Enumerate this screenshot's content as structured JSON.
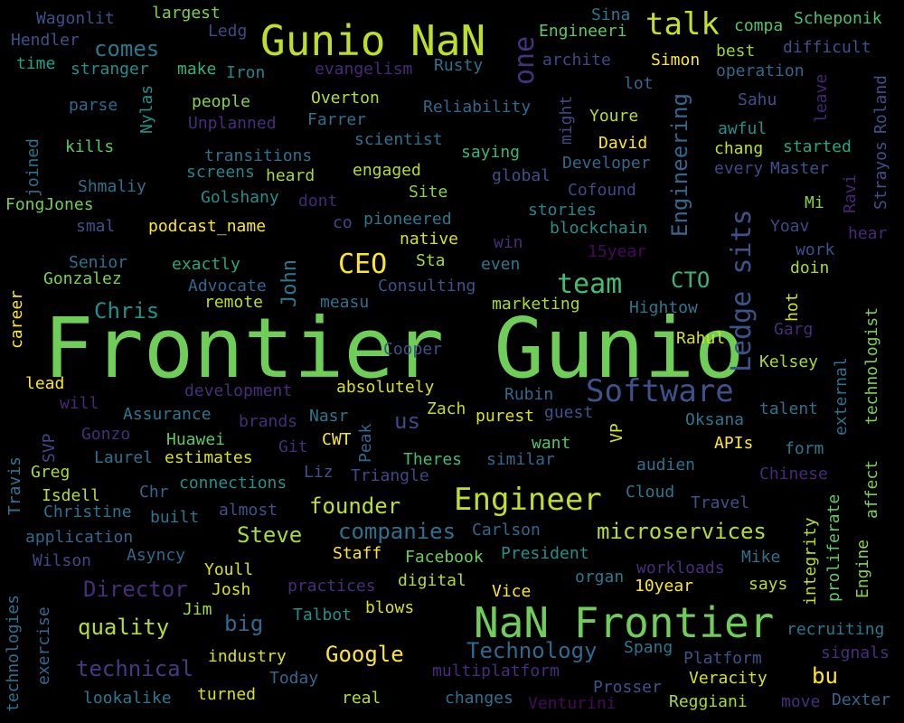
{
  "words": [
    {
      "text": "Frontier Gunio",
      "color": "#6ece58"
    },
    {
      "text": "NaN Frontier",
      "color": "#6ece58"
    },
    {
      "text": "Gunio NaN",
      "color": "#bddf26"
    },
    {
      "text": "Software",
      "color": "#3b528b"
    },
    {
      "text": "Engineer",
      "color": "#c2df23"
    },
    {
      "text": "talk",
      "color": "#c8e020"
    },
    {
      "text": "CEO",
      "color": "#fde725"
    },
    {
      "text": "team",
      "color": "#42be71"
    },
    {
      "text": "Ledge sits",
      "color": "#3b528b"
    },
    {
      "text": "Engineering",
      "color": "#31688e"
    },
    {
      "text": "one",
      "color": "#46337e"
    },
    {
      "text": "John",
      "color": "#2a788e"
    },
    {
      "text": "CTO",
      "color": "#35b779"
    },
    {
      "text": "Chris",
      "color": "#21918c"
    },
    {
      "text": "comes",
      "color": "#2a788e"
    },
    {
      "text": "Director",
      "color": "#472d7b"
    },
    {
      "text": "quality",
      "color": "#b5de2b"
    },
    {
      "text": "big",
      "color": "#31688e"
    },
    {
      "text": "technical",
      "color": "#443983"
    },
    {
      "text": "Google",
      "color": "#fde725"
    },
    {
      "text": "Technology",
      "color": "#31688e"
    },
    {
      "text": "companies",
      "color": "#2c728e"
    },
    {
      "text": "microservices",
      "color": "#b5de2b"
    },
    {
      "text": "Steve",
      "color": "#a5db36"
    },
    {
      "text": "founder",
      "color": "#bddf26"
    },
    {
      "text": "bu",
      "color": "#fde725"
    },
    {
      "text": "us",
      "color": "#3e4989"
    },
    {
      "text": "Wagonlit",
      "color": "#3b528b"
    },
    {
      "text": "largest",
      "color": "#7ad151"
    },
    {
      "text": "Ledg",
      "color": "#3e4989"
    },
    {
      "text": "Sina",
      "color": "#2a788e"
    },
    {
      "text": "Engineeri",
      "color": "#5ec962"
    },
    {
      "text": "compa",
      "color": "#52c569"
    },
    {
      "text": "Scheponik",
      "color": "#48c16e"
    },
    {
      "text": "Hendler",
      "color": "#3b528b"
    },
    {
      "text": "time",
      "color": "#20a486"
    },
    {
      "text": "stranger",
      "color": "#21918c"
    },
    {
      "text": "make",
      "color": "#2fb47c"
    },
    {
      "text": "Iron",
      "color": "#25858e"
    },
    {
      "text": "evangelism",
      "color": "#482878"
    },
    {
      "text": "Rusty",
      "color": "#2c728e"
    },
    {
      "text": "archite",
      "color": "#3e4989"
    },
    {
      "text": "Simon",
      "color": "#fde725"
    },
    {
      "text": "best",
      "color": "#93d741"
    },
    {
      "text": "difficult",
      "color": "#3b528b"
    },
    {
      "text": "operation",
      "color": "#31688e"
    },
    {
      "text": "Roland",
      "color": "#3b528b"
    },
    {
      "text": "parse",
      "color": "#31688e"
    },
    {
      "text": "people",
      "color": "#84d44b"
    },
    {
      "text": "Overton",
      "color": "#b5de2b"
    },
    {
      "text": "lot",
      "color": "#31688e"
    },
    {
      "text": "Sahu",
      "color": "#3b528b"
    },
    {
      "text": "leave",
      "color": "#482475"
    },
    {
      "text": "Nylas",
      "color": "#21918c"
    },
    {
      "text": "Unplanned",
      "color": "#472d7b"
    },
    {
      "text": "Farrer",
      "color": "#2c728e"
    },
    {
      "text": "Reliability",
      "color": "#31688e"
    },
    {
      "text": "Youre",
      "color": "#b5de2b"
    },
    {
      "text": "awful",
      "color": "#21918c"
    },
    {
      "text": "might",
      "color": "#3e4989"
    },
    {
      "text": "kills",
      "color": "#5ec962"
    },
    {
      "text": "scientist",
      "color": "#2c728e"
    },
    {
      "text": "David",
      "color": "#fde725"
    },
    {
      "text": "chang",
      "color": "#bddf26"
    },
    {
      "text": "started",
      "color": "#22a884"
    },
    {
      "text": "Strayos",
      "color": "#3b528b"
    },
    {
      "text": "joined",
      "color": "#2c728e"
    },
    {
      "text": "transitions",
      "color": "#2c728e"
    },
    {
      "text": "saying",
      "color": "#35b779"
    },
    {
      "text": "Developer",
      "color": "#31688e"
    },
    {
      "text": "every",
      "color": "#3e4989"
    },
    {
      "text": "Master",
      "color": "#3b528b"
    },
    {
      "text": "screens",
      "color": "#25858e"
    },
    {
      "text": "heard",
      "color": "#a5db36"
    },
    {
      "text": "engaged",
      "color": "#b5de2b"
    },
    {
      "text": "global",
      "color": "#3b528b"
    },
    {
      "text": "Shmaliy",
      "color": "#2c728e"
    },
    {
      "text": "Golshany",
      "color": "#21918c"
    },
    {
      "text": "dont",
      "color": "#482878"
    },
    {
      "text": "Site",
      "color": "#84d44b"
    },
    {
      "text": "Cofound",
      "color": "#3e4989"
    },
    {
      "text": "Mi",
      "color": "#84d44b"
    },
    {
      "text": "Ravi",
      "color": "#482475"
    },
    {
      "text": "FongJones",
      "color": "#6ece58"
    },
    {
      "text": "co",
      "color": "#3e4989"
    },
    {
      "text": "pioneered",
      "color": "#2a788e"
    },
    {
      "text": "stories",
      "color": "#25858e"
    },
    {
      "text": "smal",
      "color": "#3b528b"
    },
    {
      "text": "podcast_name",
      "color": "#fde725"
    },
    {
      "text": "native",
      "color": "#d8e219"
    },
    {
      "text": "blockchain",
      "color": "#21918c"
    },
    {
      "text": "Yoav",
      "color": "#3e4989"
    },
    {
      "text": "hear",
      "color": "#482878"
    },
    {
      "text": "win",
      "color": "#472d7b"
    },
    {
      "text": "15year",
      "color": "#46085c"
    },
    {
      "text": "work",
      "color": "#3b528b"
    },
    {
      "text": "Senior",
      "color": "#2c728e"
    },
    {
      "text": "exactly",
      "color": "#22a884"
    },
    {
      "text": "Sta",
      "color": "#a5db36"
    },
    {
      "text": "even",
      "color": "#2a788e"
    },
    {
      "text": "doin",
      "color": "#a5db36"
    },
    {
      "text": "Gonzalez",
      "color": "#7ad151"
    },
    {
      "text": "Advocate",
      "color": "#31688e"
    },
    {
      "text": "Consulting",
      "color": "#3b528b"
    },
    {
      "text": "career",
      "color": "#fde725"
    },
    {
      "text": "remote",
      "color": "#b5de2b"
    },
    {
      "text": "measu",
      "color": "#2c728e"
    },
    {
      "text": "marketing",
      "color": "#a5db36"
    },
    {
      "text": "Hightow",
      "color": "#2a788e"
    },
    {
      "text": "hot",
      "color": "#d8e219"
    },
    {
      "text": "technologist",
      "color": "#7ad151"
    },
    {
      "text": "Garg",
      "color": "#472d7b"
    },
    {
      "text": "Rahul",
      "color": "#d8e219"
    },
    {
      "text": "Cooper",
      "color": "#3b528b"
    },
    {
      "text": "Kelsey",
      "color": "#a5db36"
    },
    {
      "text": "lead",
      "color": "#fde725"
    },
    {
      "text": "development",
      "color": "#472d7b"
    },
    {
      "text": "absolutely",
      "color": "#d8e219"
    },
    {
      "text": "external",
      "color": "#2c728e"
    },
    {
      "text": "will",
      "color": "#482878"
    },
    {
      "text": "Rubin",
      "color": "#31688e"
    },
    {
      "text": "Assurance",
      "color": "#2a788e"
    },
    {
      "text": "brands",
      "color": "#472d7b"
    },
    {
      "text": "Nasr",
      "color": "#2a788e"
    },
    {
      "text": "Zach",
      "color": "#bddf26"
    },
    {
      "text": "purest",
      "color": "#d8e219"
    },
    {
      "text": "guest",
      "color": "#3b528b"
    },
    {
      "text": "Oksana",
      "color": "#2a788e"
    },
    {
      "text": "talent",
      "color": "#2c728e"
    },
    {
      "text": "Gonzo",
      "color": "#472d7b"
    },
    {
      "text": "Huawei",
      "color": "#5ec962"
    },
    {
      "text": "CWT",
      "color": "#fde725"
    },
    {
      "text": "Peak",
      "color": "#31688e"
    },
    {
      "text": "VP",
      "color": "#d8e219"
    },
    {
      "text": "SVP",
      "color": "#3e4989"
    },
    {
      "text": "Git",
      "color": "#472d7b"
    },
    {
      "text": "want",
      "color": "#52c569"
    },
    {
      "text": "APIs",
      "color": "#fde725"
    },
    {
      "text": "form",
      "color": "#2a788e"
    },
    {
      "text": "Travis",
      "color": "#2a788e"
    },
    {
      "text": "Laurel",
      "color": "#2c728e"
    },
    {
      "text": "estimates",
      "color": "#d8e219"
    },
    {
      "text": "Greg",
      "color": "#a5db36"
    },
    {
      "text": "Liz",
      "color": "#3b528b"
    },
    {
      "text": "Theres",
      "color": "#42be71"
    },
    {
      "text": "similar",
      "color": "#31688e"
    },
    {
      "text": "Triangle",
      "color": "#3e4989"
    },
    {
      "text": "audien",
      "color": "#2c728e"
    },
    {
      "text": "Chinese",
      "color": "#482878"
    },
    {
      "text": "affect",
      "color": "#7ad151"
    },
    {
      "text": "Chr",
      "color": "#31688e"
    },
    {
      "text": "connections",
      "color": "#21918c"
    },
    {
      "text": "Isdell",
      "color": "#b5de2b"
    },
    {
      "text": "Cloud",
      "color": "#2a788e"
    },
    {
      "text": "integrity",
      "color": "#bddf26"
    },
    {
      "text": "proliferate",
      "color": "#5ec962"
    },
    {
      "text": "Christine",
      "color": "#2c728e"
    },
    {
      "text": "built",
      "color": "#2a788e"
    },
    {
      "text": "almost",
      "color": "#3b528b"
    },
    {
      "text": "Travel",
      "color": "#3b528b"
    },
    {
      "text": "application",
      "color": "#31688e"
    },
    {
      "text": "Carlson",
      "color": "#31688e"
    },
    {
      "text": "Asyncy",
      "color": "#31688e"
    },
    {
      "text": "Staff",
      "color": "#fde725"
    },
    {
      "text": "Facebook",
      "color": "#6ece58"
    },
    {
      "text": "President",
      "color": "#21918c"
    },
    {
      "text": "Engine",
      "color": "#84d44b"
    },
    {
      "text": "Wilson",
      "color": "#3e4989"
    },
    {
      "text": "Youll",
      "color": "#d8e219"
    },
    {
      "text": "Josh",
      "color": "#d8e219"
    },
    {
      "text": "practices",
      "color": "#472d7b"
    },
    {
      "text": "digital",
      "color": "#b5de2b"
    },
    {
      "text": "organ",
      "color": "#2a788e"
    },
    {
      "text": "workloads",
      "color": "#472d7b"
    },
    {
      "text": "Mike",
      "color": "#2c728e"
    },
    {
      "text": "says",
      "color": "#b5de2b"
    },
    {
      "text": "10year",
      "color": "#fde725"
    },
    {
      "text": "Vice",
      "color": "#fde725"
    },
    {
      "text": "blows",
      "color": "#d8e219"
    },
    {
      "text": "Jim",
      "color": "#a5db36"
    },
    {
      "text": "Talbot",
      "color": "#21918c"
    },
    {
      "text": "exercise",
      "color": "#31688e"
    },
    {
      "text": "industry",
      "color": "#d8e219"
    },
    {
      "text": "Spang",
      "color": "#2a788e"
    },
    {
      "text": "recruiting",
      "color": "#2a788e"
    },
    {
      "text": "technologies",
      "color": "#2c728e"
    },
    {
      "text": "Platform",
      "color": "#3b528b"
    },
    {
      "text": "signals",
      "color": "#472d7b"
    },
    {
      "text": "Today",
      "color": "#31688e"
    },
    {
      "text": "multiplatform",
      "color": "#472d7b"
    },
    {
      "text": "Veracity",
      "color": "#d8e219"
    },
    {
      "text": "lookalike",
      "color": "#2a788e"
    },
    {
      "text": "turned",
      "color": "#d8e219"
    },
    {
      "text": "real",
      "color": "#b5de2b"
    },
    {
      "text": "changes",
      "color": "#2c728e"
    },
    {
      "text": "Prosser",
      "color": "#3b528b"
    },
    {
      "text": "Venturini",
      "color": "#46085c"
    },
    {
      "text": "Reggiani",
      "color": "#a5db36"
    },
    {
      "text": "move",
      "color": "#472d7b"
    },
    {
      "text": "Dexter",
      "color": "#31688e"
    }
  ]
}
